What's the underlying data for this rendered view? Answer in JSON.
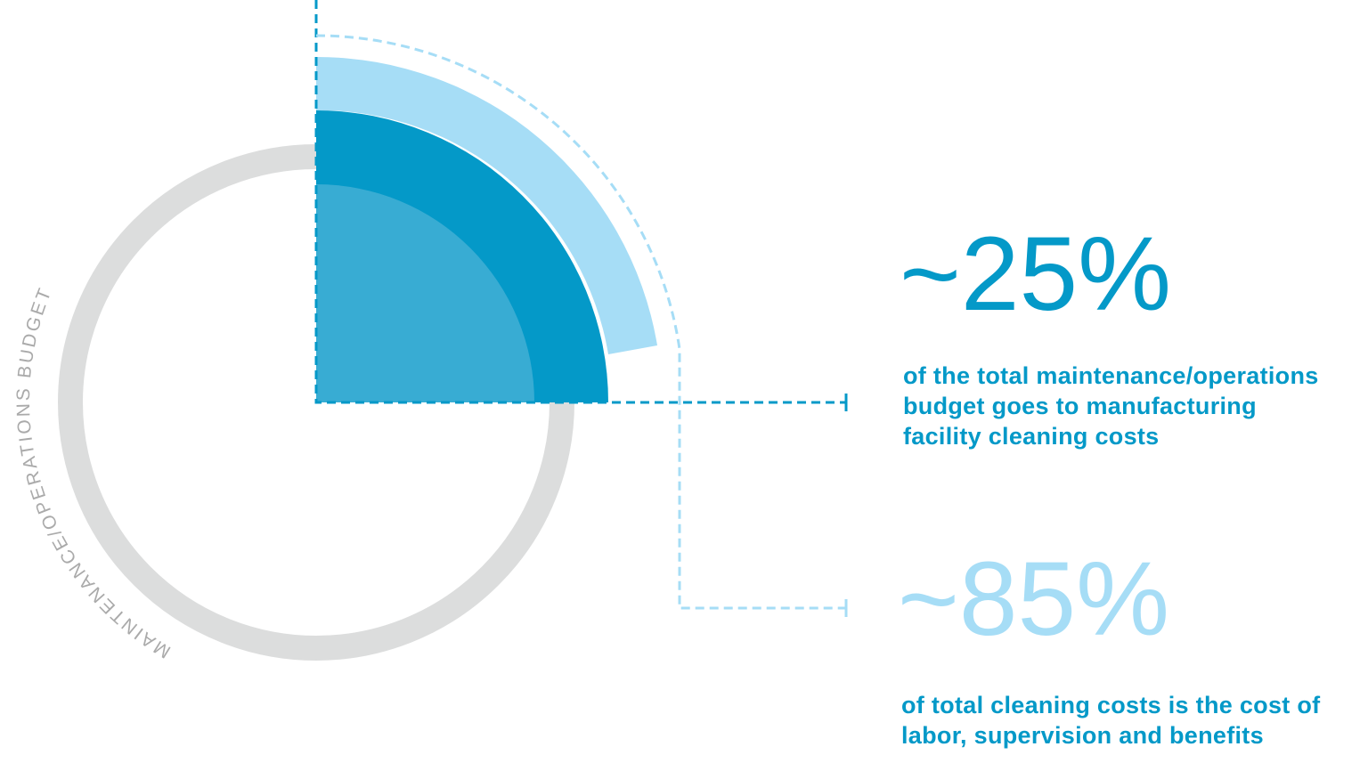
{
  "ring_label": "MAINTENANCE/OPERATIONS BUDGET",
  "stats": [
    {
      "figure": "~25%",
      "description": [
        "of the total maintenance/operations",
        "budget goes to manufacturing",
        "facility cleaning costs"
      ]
    },
    {
      "figure": "~85%",
      "description": [
        "of total cleaning costs is the cost of",
        "labor, supervision and benefits"
      ]
    }
  ]
}
